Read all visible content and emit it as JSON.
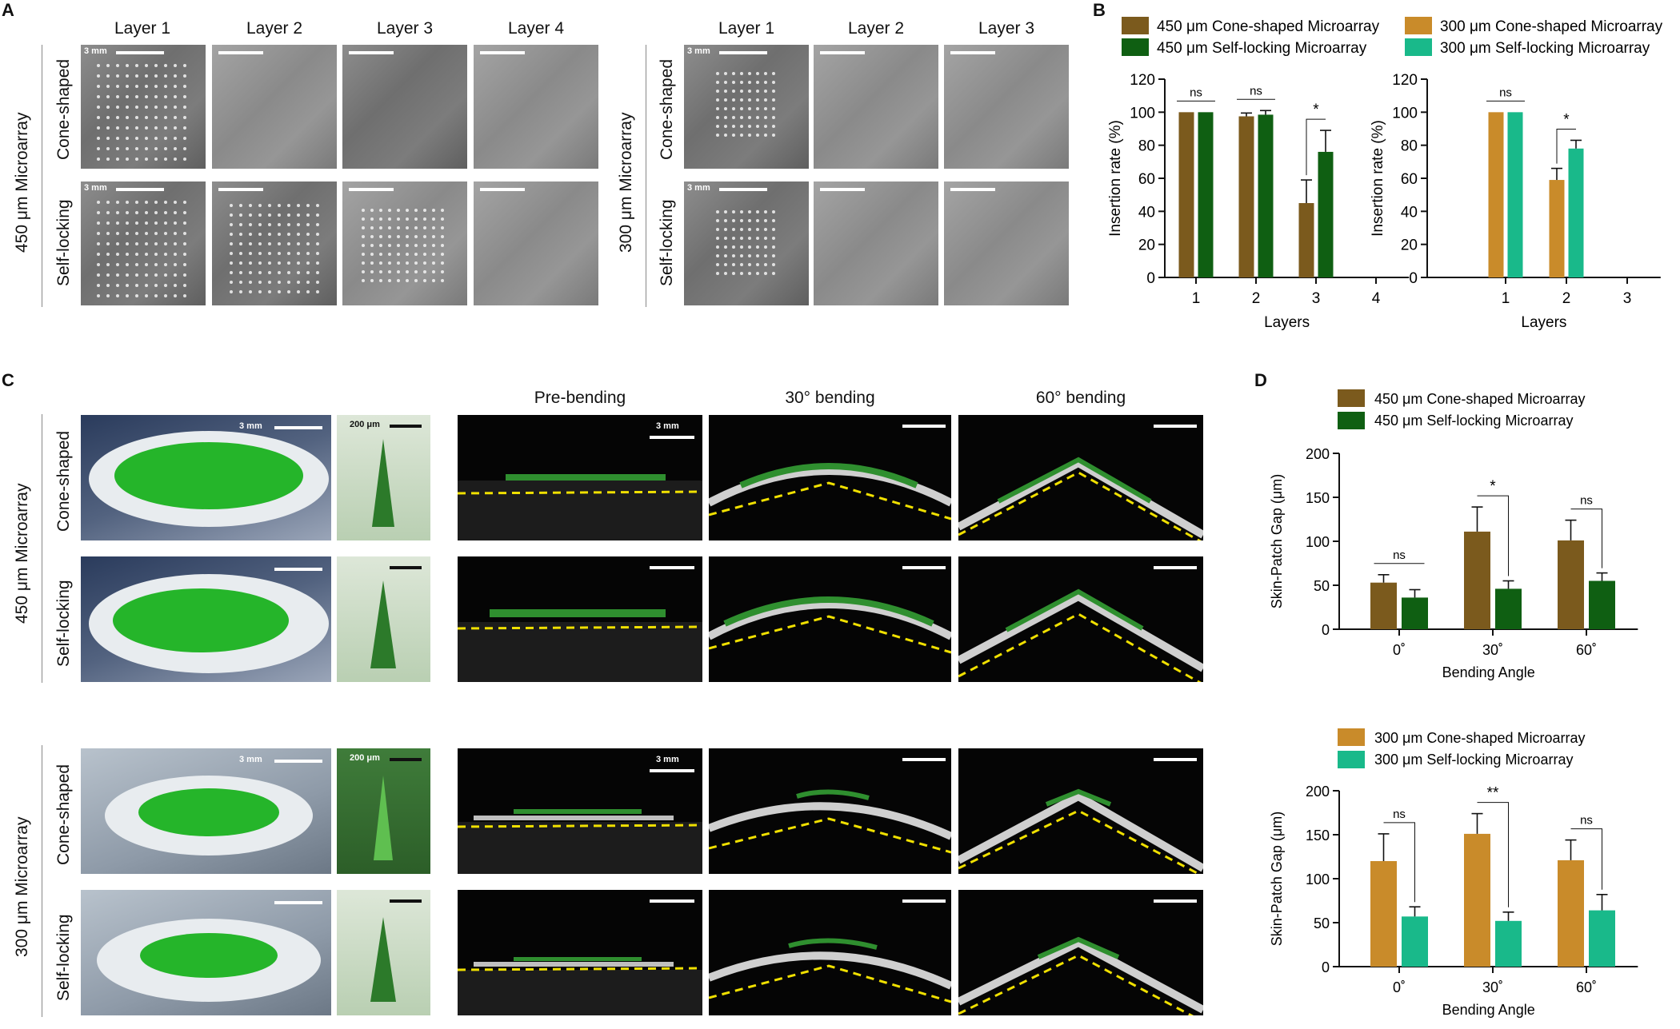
{
  "panels": {
    "a": "A",
    "b": "B",
    "c": "C",
    "d": "D"
  },
  "panel_a": {
    "left_cols": [
      "Layer 1",
      "Layer 2",
      "Layer 3",
      "Layer 4"
    ],
    "right_cols": [
      "Layer 1",
      "Layer 2",
      "Layer 3"
    ],
    "left_group": "450 μm Microarray",
    "right_group": "300 μm Microarray",
    "rows": [
      "Cone-shaped",
      "Self-locking"
    ],
    "scale_label": "3 mm"
  },
  "panel_c": {
    "cols": [
      "Pre-bending",
      "30° bending",
      "60° bending"
    ],
    "group_top": "450 μm Microarray",
    "group_bottom": "300 μm Microarray",
    "rows": [
      "Cone-shaped",
      "Self-locking"
    ],
    "scale_mm": "3 mm",
    "scale_um": "200 μm"
  },
  "colors": {
    "brown": "#7b5a1d",
    "dark_green": "#0f5f12",
    "orange": "#c98b2a",
    "teal": "#19b98a"
  },
  "chart_data": [
    {
      "type": "bar",
      "ylabel": "Insertion rate (%)",
      "xlabel": "Layers",
      "categories": [
        "1",
        "2",
        "3",
        "4"
      ],
      "ylim": [
        0,
        120
      ],
      "yticks": [
        0,
        20,
        40,
        60,
        80,
        100,
        120
      ],
      "series": [
        {
          "name": "450 μm Cone-shaped Microarray",
          "values": [
            100,
            97.5,
            45,
            0
          ],
          "err": [
            0,
            2,
            14,
            0
          ],
          "color": "#7b5a1d"
        },
        {
          "name": "450 μm Self-locking Microarray",
          "values": [
            100,
            98.5,
            76,
            0
          ],
          "err": [
            0,
            2.5,
            13,
            0
          ],
          "color": "#0f5f12"
        }
      ],
      "significance": [
        "ns",
        "ns",
        "*",
        ""
      ]
    },
    {
      "type": "bar",
      "ylabel": "Insertion rate (%)",
      "xlabel": "Layers",
      "categories": [
        "1",
        "2",
        "3"
      ],
      "ylim": [
        0,
        120
      ],
      "yticks": [
        0,
        20,
        40,
        60,
        80,
        100,
        120
      ],
      "series": [
        {
          "name": "300 μm Cone-shaped Microarray",
          "values": [
            100,
            59,
            0
          ],
          "err": [
            0,
            7,
            0
          ],
          "color": "#c98b2a"
        },
        {
          "name": "300 μm Self-locking Microarray",
          "values": [
            100,
            78,
            0
          ],
          "err": [
            0,
            5,
            0
          ],
          "color": "#19b98a"
        }
      ],
      "significance": [
        "ns",
        "*",
        ""
      ]
    },
    {
      "type": "bar",
      "ylabel": "Skin-Patch Gap (μm)",
      "xlabel": "Bending Angle",
      "categories": [
        "0˚",
        "30˚",
        "60˚"
      ],
      "ylim": [
        0,
        200
      ],
      "yticks": [
        0,
        50,
        100,
        150,
        200
      ],
      "series": [
        {
          "name": "450 μm Cone-shaped Microarray",
          "values": [
            53,
            111,
            101
          ],
          "err": [
            9,
            28,
            23
          ],
          "color": "#7b5a1d"
        },
        {
          "name": "450 μm Self-locking Microarray",
          "values": [
            36,
            46,
            55
          ],
          "err": [
            9,
            9,
            9
          ],
          "color": "#0f5f12"
        }
      ],
      "significance": [
        "ns",
        "*",
        "ns"
      ]
    },
    {
      "type": "bar",
      "ylabel": "Skin-Patch Gap (μm)",
      "xlabel": "Bending Angle",
      "categories": [
        "0˚",
        "30˚",
        "60˚"
      ],
      "ylim": [
        0,
        200
      ],
      "yticks": [
        0,
        50,
        100,
        150,
        200
      ],
      "series": [
        {
          "name": "300 μm Cone-shaped Microarray",
          "values": [
            120,
            151,
            121
          ],
          "err": [
            31,
            23,
            23
          ],
          "color": "#c98b2a"
        },
        {
          "name": "300 μm Self-locking Microarray",
          "values": [
            57,
            52,
            64
          ],
          "err": [
            11,
            10,
            18
          ],
          "color": "#19b98a"
        }
      ],
      "significance": [
        "ns",
        "**",
        "ns"
      ]
    }
  ]
}
